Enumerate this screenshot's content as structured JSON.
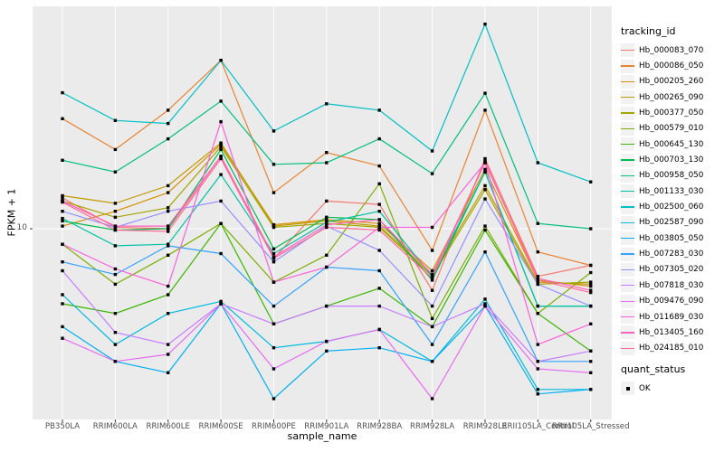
{
  "chart_data": {
    "type": "line",
    "title": "",
    "xlabel": "sample_name",
    "ylabel": "FPKM + 1",
    "y_scale": "log10",
    "y_ticks": [
      10
    ],
    "grid": "major-on",
    "legend_position": "right",
    "point_shape": "black-square",
    "categories": [
      "PB350LA",
      "RRIM600LA",
      "RRIM600LE",
      "RRIM600SE",
      "RRIM600PE",
      "RRIM901LA",
      "RRIM928BA",
      "RRIM928LA",
      "RRIM928LE",
      "RRII105LA_Control",
      "RRII105LA_Stressed"
    ],
    "series": [
      {
        "name": "Hb_000083_070",
        "color": "#F8766D",
        "values": [
          12.6,
          10.1,
          10.0,
          17.2,
          8.0,
          12.3,
          12.0,
          6.3,
          16.9,
          7.0,
          7.6
        ]
      },
      {
        "name": "Hb_000086_050",
        "color": "#EA8331",
        "values": [
          22.8,
          18.1,
          24.3,
          35.3,
          13.1,
          17.7,
          16.0,
          8.5,
          24.3,
          8.4,
          7.6
        ]
      },
      {
        "name": "Hb_000205_260",
        "color": "#D89000",
        "values": [
          10.2,
          11.4,
          13.1,
          18.8,
          10.3,
          10.7,
          10.4,
          7.3,
          15.6,
          6.8,
          6.5
        ]
      },
      {
        "name": "Hb_000265_090",
        "color": "#C09B00",
        "values": [
          12.8,
          12.1,
          13.8,
          19.0,
          10.2,
          10.6,
          10.2,
          7.1,
          13.8,
          6.7,
          6.6
        ]
      },
      {
        "name": "Hb_000377_050",
        "color": "#A3A500",
        "values": [
          12.3,
          10.9,
          11.7,
          18.5,
          10.1,
          10.4,
          10.1,
          7.0,
          13.4,
          6.6,
          6.7
        ]
      },
      {
        "name": "Hb_000579_010",
        "color": "#7CAE00",
        "values": [
          8.9,
          6.6,
          8.2,
          10.4,
          6.7,
          8.2,
          14.0,
          5.1,
          10.2,
          5.3,
          7.2
        ]
      },
      {
        "name": "Hb_000645_130",
        "color": "#39B600",
        "values": [
          5.7,
          5.3,
          6.1,
          10.4,
          4.9,
          5.6,
          6.4,
          4.8,
          9.9,
          5.3,
          4.0
        ]
      },
      {
        "name": "Hb_000703_130",
        "color": "#00BB4E",
        "values": [
          10.6,
          9.9,
          10.0,
          18.1,
          8.6,
          10.9,
          10.7,
          6.8,
          15.3,
          5.6,
          5.6
        ]
      },
      {
        "name": "Hb_000958_050",
        "color": "#00BF7D",
        "values": [
          16.7,
          15.3,
          19.6,
          26.0,
          16.2,
          16.4,
          19.6,
          15.1,
          27.6,
          10.4,
          10.0
        ]
      },
      {
        "name": "Hb_001133_030",
        "color": "#00C1A3",
        "values": [
          10.8,
          8.8,
          8.9,
          15.0,
          8.3,
          10.5,
          11.4,
          7.0,
          15.3,
          5.6,
          5.6
        ]
      },
      {
        "name": "Hb_002500_060",
        "color": "#00BFC4",
        "values": [
          27.7,
          22.5,
          22.0,
          35.3,
          20.8,
          25.5,
          24.3,
          17.9,
          46.3,
          16.4,
          14.2
        ]
      },
      {
        "name": "Hb_002587_090",
        "color": "#00BAE0",
        "values": [
          6.1,
          4.2,
          5.3,
          5.8,
          4.1,
          4.3,
          4.7,
          3.7,
          5.9,
          3.0,
          3.0
        ]
      },
      {
        "name": "Hb_003805_050",
        "color": "#00B0F6",
        "values": [
          4.8,
          3.7,
          3.4,
          5.7,
          2.8,
          4.0,
          4.1,
          3.7,
          5.6,
          2.9,
          3.0
        ]
      },
      {
        "name": "Hb_007283_030",
        "color": "#35A2FF",
        "values": [
          7.8,
          7.1,
          8.8,
          8.3,
          5.6,
          7.5,
          7.3,
          4.2,
          8.4,
          3.7,
          3.7
        ]
      },
      {
        "name": "Hb_007305_020",
        "color": "#9590FF",
        "values": [
          11.4,
          10.1,
          11.4,
          12.3,
          7.8,
          10.2,
          8.5,
          5.6,
          12.5,
          6.6,
          5.6
        ]
      },
      {
        "name": "Hb_007818_030",
        "color": "#C77CFF",
        "values": [
          7.3,
          4.6,
          4.2,
          5.7,
          4.9,
          5.6,
          5.6,
          4.8,
          5.7,
          3.7,
          4.0
        ]
      },
      {
        "name": "Hb_009476_090",
        "color": "#E76BF3",
        "values": [
          4.4,
          3.7,
          3.9,
          5.7,
          3.5,
          4.3,
          4.7,
          2.8,
          5.6,
          3.5,
          3.4
        ]
      },
      {
        "name": "Hb_011689_030",
        "color": "#FA62DB",
        "values": [
          8.9,
          7.4,
          6.5,
          22.3,
          6.7,
          7.5,
          10.1,
          10.1,
          16.4,
          4.2,
          4.9
        ]
      },
      {
        "name": "Hb_013405_160",
        "color": "#FF62BC",
        "values": [
          12.3,
          10.2,
          10.2,
          17.2,
          8.1,
          10.3,
          10.7,
          7.1,
          16.4,
          6.9,
          6.3
        ]
      },
      {
        "name": "Hb_024185_010",
        "color": "#FF6A98",
        "values": [
          12.2,
          9.9,
          9.8,
          16.9,
          8.0,
          10.1,
          9.9,
          6.9,
          16.6,
          6.8,
          6.2
        ]
      }
    ],
    "legend": {
      "color_title": "tracking_id",
      "shape_title": "quant_status",
      "shape_entries": [
        {
          "label": "OK"
        }
      ]
    },
    "colors": {
      "panel_bg": "#EBEBEB",
      "grid": "#FFFFFF",
      "point": "#000000",
      "axis_text": "#4D4D4D",
      "legend_key_bg": "#F2F2F2",
      "background": "#FFFFFF"
    }
  }
}
